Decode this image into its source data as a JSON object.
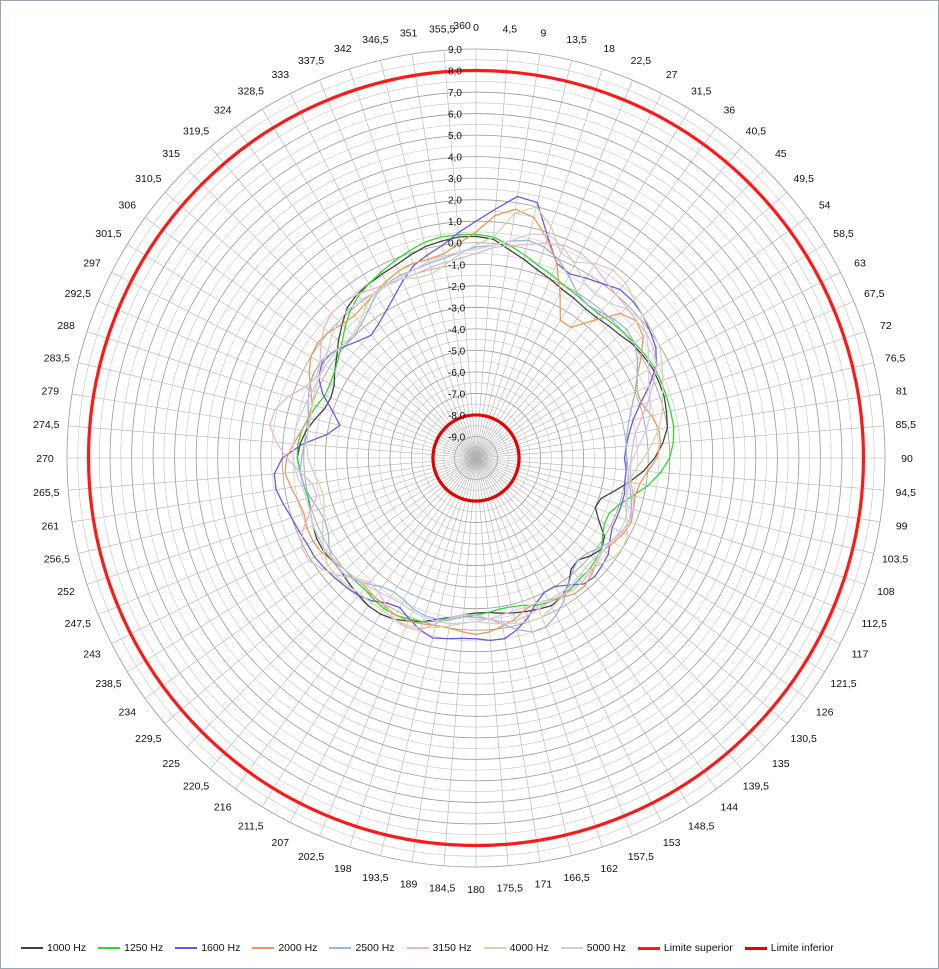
{
  "chart_data": {
    "type": "polar-line",
    "title": "",
    "angle_ticks": [
      "0",
      "4,5",
      "9",
      "13,5",
      "18",
      "22,5",
      "27",
      "31,5",
      "36",
      "40,5",
      "45",
      "49,5",
      "54",
      "58,5",
      "63",
      "67,5",
      "72",
      "76,5",
      "81",
      "85,5",
      "90",
      "94,5",
      "99",
      "103,5",
      "108",
      "112,5",
      "117",
      "121,5",
      "126",
      "130,5",
      "135",
      "139,5",
      "144",
      "148,5",
      "153",
      "157,5",
      "162",
      "166,5",
      "171",
      "175,5",
      "180",
      "184,5",
      "189",
      "193,5",
      "198",
      "202,5",
      "207",
      "211,5",
      "216",
      "220,5",
      "225",
      "229,5",
      "234",
      "238,5",
      "243",
      "247,5",
      "252",
      "256,5",
      "261",
      "265,5",
      "270",
      "274,5",
      "279",
      "283,5",
      "288",
      "292,5",
      "297",
      "301,5",
      "306",
      "310,5",
      "315",
      "319,5",
      "324",
      "328,5",
      "333",
      "337,5",
      "342",
      "346,5",
      "351",
      "355,5",
      "360"
    ],
    "radial_ticks": [
      "-9,0",
      "-8,0",
      "-7,0",
      "-6,0",
      "-5,0",
      "-4,0",
      "-3,0",
      "-2,0",
      "-1,0",
      "0,0",
      "1,0",
      "2,0",
      "3,0",
      "4,0",
      "5,0",
      "6,0",
      "7,0",
      "8,0",
      "9,0"
    ],
    "rlim": [
      -10,
      9
    ],
    "grid": true,
    "legend_position": "bottom",
    "series": [
      {
        "name": "1000 Hz",
        "color": "#404040",
        "values": [
          0.3,
          0.2,
          -0.2,
          -0.5,
          -0.8,
          -1.0,
          -1.2,
          -1.3,
          -1.4,
          -1.4,
          -1.3,
          -1.2,
          -1.0,
          -0.9,
          -0.8,
          -0.8,
          -0.8,
          -0.9,
          -1.0,
          -1.3,
          -1.7,
          -2.2,
          -2.8,
          -3.4,
          -3.9,
          -4.0,
          -3.6,
          -3.0,
          -2.8,
          -3.0,
          -3.3,
          -3.2,
          -2.7,
          -2.4,
          -2.3,
          -2.4,
          -2.5,
          -2.6,
          -2.7,
          -2.8,
          -2.8,
          -2.7,
          -2.5,
          -2.3,
          -2.0,
          -1.8,
          -1.6,
          -1.5,
          -1.5,
          -1.6,
          -1.7,
          -1.8,
          -1.8,
          -1.7,
          -1.7,
          -1.8,
          -1.9,
          -2.0,
          -1.9,
          -1.8,
          -1.7,
          -1.8,
          -2.0,
          -2.3,
          -2.6,
          -2.7,
          -2.6,
          -2.3,
          -2.0,
          -1.6,
          -1.2,
          -0.8,
          -0.6,
          -0.5,
          -0.4,
          -0.3,
          -0.1,
          0.1,
          0.2,
          0.3,
          0.3
        ]
      },
      {
        "name": "1250 Hz",
        "color": "#33d633",
        "values": [
          0.4,
          0.3,
          0.0,
          -0.3,
          -0.6,
          -0.8,
          -1.0,
          -1.1,
          -1.2,
          -1.2,
          -1.1,
          -1.0,
          -0.9,
          -0.8,
          -0.7,
          -0.7,
          -0.7,
          -0.7,
          -0.7,
          -0.8,
          -1.0,
          -1.4,
          -1.9,
          -2.5,
          -3.0,
          -3.3,
          -3.3,
          -3.1,
          -2.8,
          -2.7,
          -2.6,
          -2.6,
          -2.5,
          -2.4,
          -2.5,
          -2.6,
          -2.8,
          -2.9,
          -2.9,
          -2.8,
          -2.7,
          -2.6,
          -2.4,
          -2.2,
          -2.0,
          -1.9,
          -1.8,
          -1.8,
          -1.9,
          -2.0,
          -2.0,
          -2.0,
          -1.9,
          -1.8,
          -1.8,
          -1.8,
          -1.9,
          -2.0,
          -1.9,
          -1.8,
          -1.7,
          -1.7,
          -1.8,
          -2.0,
          -2.2,
          -2.4,
          -2.4,
          -2.3,
          -2.1,
          -1.8,
          -1.4,
          -1.0,
          -0.7,
          -0.5,
          -0.3,
          -0.1,
          0.1,
          0.3,
          0.4,
          0.4,
          0.4
        ]
      },
      {
        "name": "1600 Hz",
        "color": "#6a5ae0",
        "values": [
          1.0,
          1.6,
          2.3,
          2.2,
          0.8,
          -0.2,
          -0.4,
          -0.2,
          0.0,
          0.3,
          0.3,
          0.2,
          0.0,
          -0.2,
          -0.6,
          -1.3,
          -2.0,
          -2.5,
          -2.8,
          -3.0,
          -3.1,
          -3.0,
          -3.0,
          -2.9,
          -2.9,
          -2.9,
          -2.9,
          -2.7,
          -2.4,
          -2.3,
          -2.2,
          -2.3,
          -2.7,
          -3.0,
          -3.0,
          -2.7,
          -2.2,
          -1.8,
          -1.5,
          -1.5,
          -1.6,
          -1.6,
          -1.5,
          -1.4,
          -1.6,
          -1.9,
          -2.2,
          -2.1,
          -1.8,
          -1.6,
          -1.5,
          -1.4,
          -1.3,
          -1.2,
          -1.2,
          -1.1,
          -1.0,
          -0.8,
          -0.6,
          -0.6,
          -1.0,
          -1.9,
          -3.0,
          -3.5,
          -3.0,
          -2.3,
          -1.8,
          -1.6,
          -1.7,
          -2.0,
          -2.3,
          -2.5,
          -2.3,
          -2.0,
          -1.6,
          -1.1,
          -0.6,
          -0.3,
          0.0,
          0.5,
          1.0
        ]
      },
      {
        "name": "2000 Hz",
        "color": "#e89a5a",
        "values": [
          0.5,
          1.3,
          1.7,
          1.5,
          0.7,
          -0.2,
          -1.4,
          -2.5,
          -2.5,
          -1.6,
          -0.5,
          -0.2,
          -0.4,
          -1.0,
          -1.6,
          -1.9,
          -1.9,
          -1.6,
          -1.4,
          -1.4,
          -1.6,
          -2.0,
          -2.3,
          -2.4,
          -2.3,
          -2.2,
          -2.3,
          -2.5,
          -2.7,
          -2.6,
          -2.4,
          -2.2,
          -2.2,
          -2.4,
          -2.6,
          -2.7,
          -2.6,
          -2.3,
          -2.1,
          -1.9,
          -1.8,
          -1.9,
          -2.0,
          -2.0,
          -1.9,
          -1.8,
          -1.8,
          -1.9,
          -2.0,
          -2.1,
          -2.1,
          -2.0,
          -1.8,
          -1.6,
          -1.5,
          -1.5,
          -1.6,
          -1.5,
          -1.3,
          -1.1,
          -1.2,
          -1.5,
          -1.8,
          -2.0,
          -2.0,
          -1.7,
          -1.3,
          -1.0,
          -0.9,
          -1.0,
          -1.2,
          -1.3,
          -1.2,
          -1.0,
          -0.8,
          -0.6,
          -0.5,
          -0.5,
          -0.4,
          0.0,
          0.5
        ]
      },
      {
        "name": "2500 Hz",
        "color": "#9ab4dc",
        "values": [
          -0.2,
          -0.1,
          0.2,
          0.4,
          0.3,
          0.0,
          -0.5,
          -1.0,
          -1.2,
          -1.1,
          -0.9,
          -0.8,
          -0.9,
          -1.2,
          -1.6,
          -2.0,
          -2.4,
          -2.7,
          -2.9,
          -3.0,
          -3.0,
          -2.9,
          -2.8,
          -2.6,
          -2.4,
          -2.3,
          -2.4,
          -2.6,
          -2.9,
          -3.2,
          -3.3,
          -3.1,
          -2.7,
          -2.2,
          -1.8,
          -1.5,
          -1.5,
          -1.8,
          -2.2,
          -2.5,
          -2.6,
          -2.6,
          -2.4,
          -2.3,
          -2.3,
          -2.4,
          -2.6,
          -2.7,
          -2.6,
          -2.3,
          -2.0,
          -1.8,
          -1.8,
          -2.0,
          -2.3,
          -2.4,
          -2.3,
          -2.1,
          -1.9,
          -1.8,
          -1.9,
          -2.0,
          -2.1,
          -2.0,
          -1.8,
          -1.6,
          -1.5,
          -1.5,
          -1.7,
          -1.9,
          -2.0,
          -1.8,
          -1.5,
          -1.1,
          -0.9,
          -0.8,
          -0.8,
          -0.7,
          -0.6,
          -0.4,
          -0.2
        ]
      },
      {
        "name": "3150 Hz",
        "color": "#e6b8c4",
        "values": [
          -0.5,
          -0.2,
          0.0,
          0.2,
          0.5,
          0.7,
          0.7,
          0.5,
          0.2,
          0.0,
          -0.1,
          -0.2,
          -0.2,
          -0.3,
          -0.6,
          -1.1,
          -1.6,
          -2.1,
          -2.5,
          -2.7,
          -2.8,
          -2.8,
          -2.7,
          -2.5,
          -2.3,
          -2.3,
          -2.4,
          -2.6,
          -2.7,
          -2.6,
          -2.5,
          -2.4,
          -2.4,
          -2.5,
          -2.5,
          -2.4,
          -2.3,
          -2.2,
          -2.3,
          -2.5,
          -2.7,
          -2.7,
          -2.5,
          -2.1,
          -1.6,
          -1.5,
          -1.6,
          -2.0,
          -2.3,
          -2.4,
          -2.1,
          -1.6,
          -1.2,
          -0.9,
          -0.9,
          -1.3,
          -1.9,
          -2.4,
          -2.3,
          -1.8,
          -1.2,
          -0.7,
          -0.3,
          -0.4,
          -0.8,
          -1.4,
          -1.7,
          -1.5,
          -1.1,
          -0.7,
          -0.5,
          -0.5,
          -0.6,
          -0.8,
          -0.9,
          -1.0,
          -1.0,
          -0.9,
          -0.8,
          -0.7,
          -0.5
        ]
      },
      {
        "name": "4000 Hz",
        "color": "#cfd6b0",
        "values": [
          -0.1,
          0.3,
          1.5,
          2.0,
          1.3,
          0.3,
          0.2,
          0.6,
          0.8,
          0.7,
          0.4,
          0.2,
          0.1,
          0.0,
          -0.3,
          -0.6,
          -0.9,
          -1.1,
          -1.4,
          -1.8,
          -2.2,
          -2.6,
          -2.8,
          -2.8,
          -2.7,
          -2.4,
          -2.1,
          -2.0,
          -2.1,
          -2.4,
          -2.6,
          -2.7,
          -2.6,
          -2.4,
          -2.2,
          -2.0,
          -2.0,
          -2.1,
          -2.2,
          -2.3,
          -2.4,
          -2.3,
          -2.1,
          -1.9,
          -1.7,
          -1.6,
          -1.6,
          -1.7,
          -1.7,
          -1.7,
          -1.6,
          -1.5,
          -1.5,
          -1.7,
          -2.0,
          -2.3,
          -2.6,
          -2.7,
          -2.6,
          -2.4,
          -2.2,
          -2.1,
          -2.1,
          -2.1,
          -2.0,
          -1.9,
          -1.8,
          -1.8,
          -1.8,
          -1.9,
          -1.9,
          -1.7,
          -1.3,
          -1.0,
          -0.9,
          -1.0,
          -1.2,
          -1.2,
          -0.9,
          -0.5,
          -0.1
        ]
      },
      {
        "name": "5000 Hz",
        "color": "#d2cbe8",
        "values": [
          -0.3,
          -0.1,
          0.2,
          0.7,
          0.9,
          0.6,
          0.1,
          -0.4,
          -0.6,
          -0.5,
          -0.2,
          0.0,
          -0.2,
          -0.6,
          -1.0,
          -1.3,
          -1.5,
          -1.7,
          -2.0,
          -2.4,
          -2.7,
          -2.9,
          -2.9,
          -2.8,
          -2.6,
          -2.5,
          -2.5,
          -2.6,
          -2.7,
          -2.8,
          -2.8,
          -2.7,
          -2.6,
          -2.6,
          -2.6,
          -2.7,
          -2.7,
          -2.7,
          -2.6,
          -2.5,
          -2.4,
          -2.3,
          -2.2,
          -2.2,
          -2.2,
          -2.3,
          -2.4,
          -2.4,
          -2.3,
          -2.2,
          -2.1,
          -2.0,
          -1.9,
          -1.8,
          -1.8,
          -1.8,
          -1.9,
          -1.9,
          -1.8,
          -1.6,
          -1.5,
          -1.5,
          -1.5,
          -1.6,
          -1.7,
          -1.8,
          -1.8,
          -1.7,
          -1.5,
          -1.2,
          -1.0,
          -0.9,
          -0.9,
          -1.0,
          -1.0,
          -0.9,
          -0.8,
          -0.6,
          -0.5,
          -0.4,
          -0.3
        ]
      },
      {
        "name": "Limite superior",
        "color": "#ff1a1a",
        "constant": 8.0
      },
      {
        "name": "Limite inferior",
        "color": "#e00000",
        "constant": -8.0
      }
    ]
  }
}
